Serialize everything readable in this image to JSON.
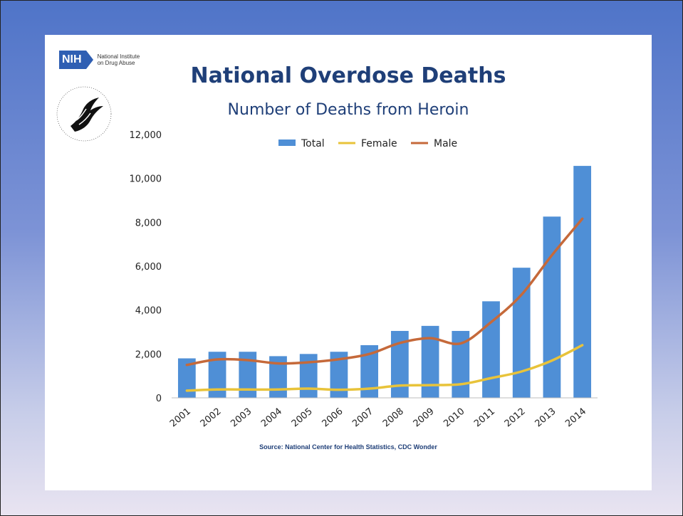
{
  "logo": {
    "nih_badge": "NIH",
    "nih_line1": "National Institute",
    "nih_line2": "on Drug Abuse"
  },
  "colors": {
    "total": "#4f8fd6",
    "female": "#e8c33a",
    "male": "#c5693a",
    "title": "#1f3f78"
  },
  "chart_data": {
    "type": "bar",
    "title": "National Overdose Deaths",
    "subtitle": "Number of Deaths from Heroin",
    "source": "Source: National Center for Health Statistics, CDC Wonder",
    "categories": [
      "2001",
      "2002",
      "2003",
      "2004",
      "2005",
      "2006",
      "2007",
      "2008",
      "2009",
      "2010",
      "2011",
      "2012",
      "2013",
      "2014"
    ],
    "series": [
      {
        "name": "Total",
        "type": "bar",
        "color": "#4f8fd6",
        "values": [
          1800,
          2100,
          2100,
          1900,
          2000,
          2100,
          2400,
          3050,
          3280,
          3050,
          4400,
          5930,
          8260,
          10570
        ]
      },
      {
        "name": "Female",
        "type": "line",
        "color": "#e8c33a",
        "values": [
          330,
          380,
          380,
          380,
          420,
          370,
          420,
          560,
          580,
          620,
          900,
          1200,
          1700,
          2400
        ]
      },
      {
        "name": "Male",
        "type": "line",
        "color": "#c5693a",
        "values": [
          1500,
          1750,
          1720,
          1570,
          1620,
          1760,
          2000,
          2500,
          2720,
          2480,
          3450,
          4700,
          6500,
          8160
        ]
      }
    ],
    "ylim": [
      0,
      12000
    ],
    "yticks": [
      0,
      2000,
      4000,
      6000,
      8000,
      10000,
      12000
    ],
    "ytick_labels": [
      "0",
      "2,000",
      "4,000",
      "6,000",
      "8,000",
      "10,000",
      "12,000"
    ],
    "legend_position": "top-center",
    "grid": false
  }
}
